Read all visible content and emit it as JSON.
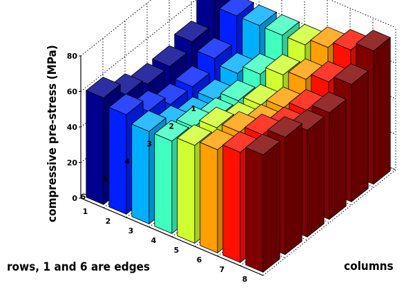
{
  "chart_data": {
    "type": "bar3d",
    "zlabel": "compressive pre-stress (MPa)",
    "xlabel": "columns",
    "ylabel": "rows, 1 and 6 are edges",
    "row_ticks": [
      "1",
      "2",
      "3",
      "4",
      "5",
      "6"
    ],
    "column_ticks": [
      "1",
      "2",
      "3",
      "4",
      "5",
      "6",
      "7",
      "8"
    ],
    "z_ticks": [
      "0",
      "20",
      "40",
      "60",
      "80"
    ],
    "zlim": [
      0,
      80
    ],
    "grid": true,
    "column_colors": [
      "#00008F",
      "#0020FF",
      "#00AFFF",
      "#40FFBF",
      "#CFFF30",
      "#FF9F00",
      "#FF1000",
      "#800000"
    ],
    "values": [
      [
        66,
        62,
        62,
        62,
        62,
        66,
        70,
        75
      ],
      [
        52,
        48,
        45,
        50,
        55,
        58,
        62,
        66
      ],
      [
        48,
        42,
        40,
        45,
        48,
        52,
        56,
        60
      ],
      [
        48,
        42,
        40,
        45,
        48,
        52,
        56,
        60
      ],
      [
        52,
        48,
        45,
        50,
        55,
        58,
        62,
        66
      ],
      [
        60,
        56,
        52,
        52,
        55,
        58,
        62,
        66
      ]
    ]
  }
}
